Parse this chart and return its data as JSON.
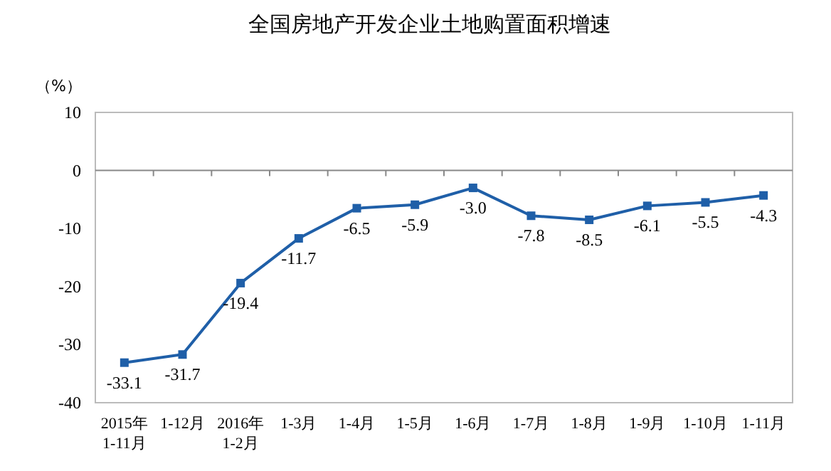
{
  "chart_data": {
    "type": "line",
    "title": "全国房地产开发企业土地购置面积增速",
    "ylabel": "（%）",
    "categories": [
      "2015年\n1-11月",
      "1-12月",
      "2016年\n1-2月",
      "1-3月",
      "1-4月",
      "1-5月",
      "1-6月",
      "1-7月",
      "1-8月",
      "1-9月",
      "1-10月",
      "1-11月"
    ],
    "series": [
      {
        "color": "#1f5fa8",
        "values": [
          -33.1,
          -31.7,
          -19.4,
          -11.7,
          -6.5,
          -5.9,
          -3.0,
          -7.8,
          -8.5,
          -6.1,
          -5.5,
          -4.3
        ],
        "value_labels": [
          "-33.1",
          "-31.7",
          "-19.4",
          "-11.7",
          "-6.5",
          "-5.9",
          "-3.0",
          "-7.8",
          "-8.5",
          "-6.1",
          "-5.5",
          "-4.3"
        ]
      }
    ],
    "ylim": [
      -40,
      10
    ],
    "yticks": [
      -40,
      -30,
      -20,
      -10,
      0,
      10
    ],
    "marker": "square",
    "line_style": "solid"
  }
}
